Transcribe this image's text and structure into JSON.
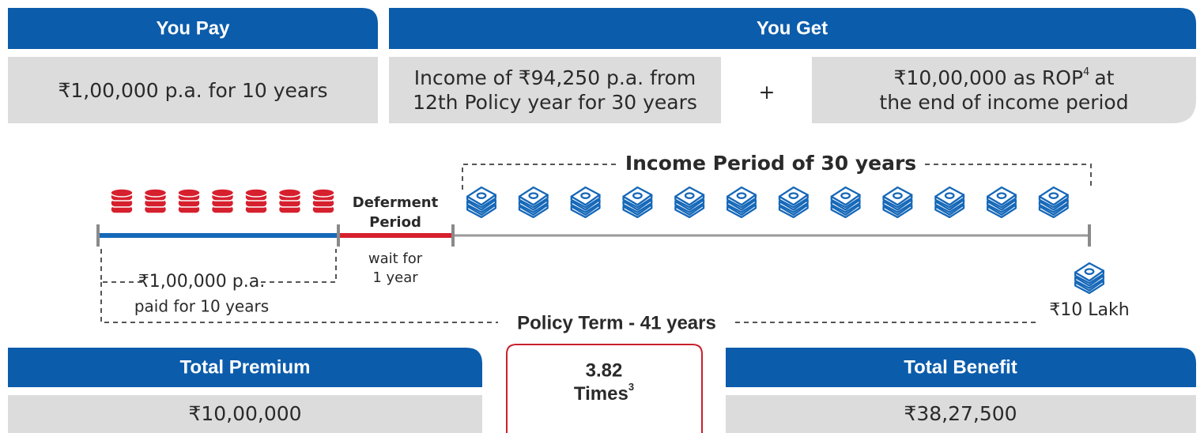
{
  "you_pay": {
    "title": "You Pay",
    "text": "₹1,00,000 p.a. for 10 years"
  },
  "you_get": {
    "title": "You Get",
    "income": [
      "Income of ₹94,250 p.a. from",
      "12th Policy year for 30 years"
    ],
    "plus": "+",
    "rop": {
      "text": "₹10,00,000 as ROP",
      "sup": "4",
      "after": "at",
      "line2": "the end of income period"
    }
  },
  "timeline": {
    "income_period": "Income Period of 30 years",
    "deferment": [
      "Deferment",
      "Period"
    ],
    "wait": [
      "wait for",
      "1 year"
    ],
    "premium": [
      "₹1,00,000 p.a.",
      "paid for 10 years"
    ],
    "maturity": "₹10 Lakh",
    "policy_term": "Policy Term - 41 years"
  },
  "summary": {
    "total_premium": {
      "title": "Total Premium",
      "value": "₹10,00,000"
    },
    "multiple": {
      "value": "3.82",
      "label": "Times",
      "sup": "3"
    },
    "total_benefit": {
      "title": "Total Benefit",
      "value": "₹38,27,500"
    }
  }
}
